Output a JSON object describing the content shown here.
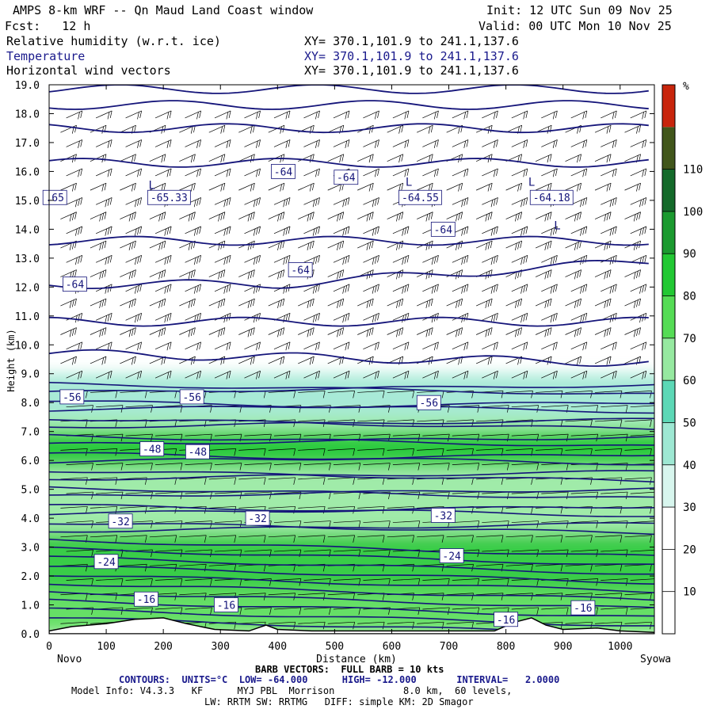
{
  "header": {
    "title": "AMPS 8-km WRF -- Qn Maud Land Coast window",
    "init": "Init: 12 UTC Sun 09 Nov 25",
    "fcst": "Fcst:   12 h",
    "valid": "Valid: 00 UTC Mon 10 Nov 25",
    "field1": "Relative humidity (w.r.t. ice)",
    "field2": "Temperature",
    "field3": "Horizontal wind vectors",
    "xy1": "XY= 370.1,101.9 to 241.1,137.6",
    "xy2": "XY= 370.1,101.9 to 241.1,137.6",
    "xy3": "XY= 370.1,101.9 to 241.1,137.6"
  },
  "chart_data": {
    "type": "heatmap",
    "xlabel": "Distance (km)",
    "ylabel": "Height (km)",
    "xlim": [
      0,
      1060
    ],
    "ylim": [
      0,
      19
    ],
    "xticks": [
      0,
      100,
      200,
      300,
      400,
      500,
      600,
      700,
      800,
      900,
      1000
    ],
    "yticks": [
      "0.0",
      "1.0",
      "2.0",
      "3.0",
      "4.0",
      "5.0",
      "6.0",
      "7.0",
      "8.0",
      "9.0",
      "10.0",
      "11.0",
      "12.0",
      "13.0",
      "14.0",
      "15.0",
      "16.0",
      "17.0",
      "18.0",
      "19.0"
    ],
    "left_endpoint": "Novo",
    "right_endpoint": "Syowa",
    "colorbar": {
      "unit": "%",
      "levels": [
        10,
        20,
        30,
        40,
        50,
        60,
        70,
        80,
        90,
        100,
        110
      ],
      "colors": [
        "#ffffff",
        "#ffffff",
        "#ffffff",
        "#d8f6ee",
        "#9ee8d3",
        "#5cd8b6",
        "#96e9a0",
        "#55dc55",
        "#22c833",
        "#1b9a2f",
        "#146a2a",
        "#41561b",
        "#c8250c"
      ]
    },
    "rh_regions": [
      {
        "band": [
          7.5,
          9.0
        ],
        "rh": 45
      },
      {
        "band": [
          3.5,
          7.5
        ],
        "rh": 68
      },
      {
        "band": [
          5.8,
          7.0
        ],
        "rh": 85
      },
      {
        "band": [
          1.5,
          3.5
        ],
        "rh": 82
      },
      {
        "band": [
          0.0,
          1.5
        ],
        "rh": 75
      }
    ],
    "temperature_labels": [
      {
        "x": 10,
        "y": 15.1,
        "text": ".65"
      },
      {
        "x": 210,
        "y": 15.1,
        "text": "-65.33"
      },
      {
        "x": 650,
        "y": 15.1,
        "text": "-64.55"
      },
      {
        "x": 880,
        "y": 15.1,
        "text": "-64.18"
      },
      {
        "x": 410,
        "y": 16.0,
        "text": "-64"
      },
      {
        "x": 520,
        "y": 15.8,
        "text": "-64"
      },
      {
        "x": 690,
        "y": 14.0,
        "text": "-64"
      },
      {
        "x": 440,
        "y": 12.6,
        "text": "-64"
      },
      {
        "x": 45,
        "y": 12.1,
        "text": "-64"
      },
      {
        "x": 40,
        "y": 8.2,
        "text": "-56"
      },
      {
        "x": 250,
        "y": 8.2,
        "text": "-56"
      },
      {
        "x": 665,
        "y": 8.0,
        "text": "-56"
      },
      {
        "x": 180,
        "y": 6.4,
        "text": "-48"
      },
      {
        "x": 260,
        "y": 6.3,
        "text": "-48"
      },
      {
        "x": 125,
        "y": 3.9,
        "text": "-32"
      },
      {
        "x": 365,
        "y": 4.0,
        "text": "-32"
      },
      {
        "x": 690,
        "y": 4.1,
        "text": "-32"
      },
      {
        "x": 100,
        "y": 2.5,
        "text": "-24"
      },
      {
        "x": 705,
        "y": 2.7,
        "text": "-24"
      },
      {
        "x": 170,
        "y": 1.2,
        "text": "-16"
      },
      {
        "x": 310,
        "y": 1.0,
        "text": "-16"
      },
      {
        "x": 800,
        "y": 0.5,
        "text": "-16"
      },
      {
        "x": 935,
        "y": 0.9,
        "text": "-16"
      }
    ],
    "low_markers": [
      {
        "x": 180,
        "y": 15.4
      },
      {
        "x": 630,
        "y": 15.5
      },
      {
        "x": 845,
        "y": 15.5
      },
      {
        "x": 890,
        "y": 14.0
      }
    ]
  },
  "footer": {
    "barb": "BARB VECTORS:  FULL BARB = 10 kts",
    "contours": "CONTOURS:  UNITS=°C  LOW= -64.000      HIGH= -12.000       INTERVAL=   2.0000",
    "model1": "Model Info: V4.3.3   KF      MYJ PBL  Morrison            8.0 km,  60 levels,",
    "model2": "LW: RRTM SW: RRTMG   DIFF: simple KM: 2D Smagor"
  }
}
